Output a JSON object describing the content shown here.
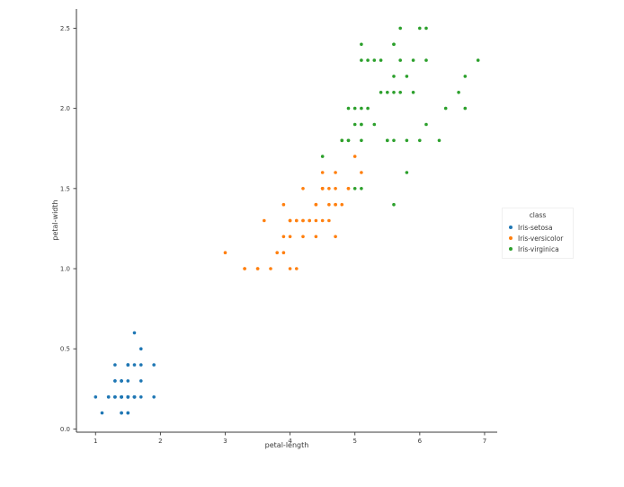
{
  "figure": {
    "background": "#ffffff",
    "text_color": "#3a3a3a",
    "spine_color": "#3a3a3a"
  },
  "chart_data": {
    "type": "scatter",
    "title": "",
    "xlabel": "petal-length",
    "ylabel": "petal-width",
    "xlim": [
      0.705,
      7.195
    ],
    "ylim": [
      -0.02,
      2.62
    ],
    "xticks": [
      "1",
      "2",
      "3",
      "4",
      "5",
      "6",
      "7"
    ],
    "yticks": [
      "0.0",
      "0.5",
      "1.0",
      "1.5",
      "2.0",
      "2.5"
    ],
    "grid": false,
    "legend": {
      "title": "class",
      "position": "right-outside",
      "entries": [
        "Iris-setosa",
        "Iris-versicolor",
        "Iris-virginica"
      ]
    },
    "series": [
      {
        "name": "Iris-setosa",
        "color": "#1f77b4",
        "points": [
          [
            1.4,
            0.2
          ],
          [
            1.4,
            0.2
          ],
          [
            1.3,
            0.2
          ],
          [
            1.5,
            0.2
          ],
          [
            1.4,
            0.2
          ],
          [
            1.7,
            0.4
          ],
          [
            1.4,
            0.3
          ],
          [
            1.5,
            0.2
          ],
          [
            1.4,
            0.2
          ],
          [
            1.5,
            0.1
          ],
          [
            1.5,
            0.2
          ],
          [
            1.6,
            0.2
          ],
          [
            1.4,
            0.1
          ],
          [
            1.1,
            0.1
          ],
          [
            1.2,
            0.2
          ],
          [
            1.5,
            0.4
          ],
          [
            1.3,
            0.4
          ],
          [
            1.4,
            0.3
          ],
          [
            1.7,
            0.3
          ],
          [
            1.5,
            0.3
          ],
          [
            1.7,
            0.2
          ],
          [
            1.5,
            0.4
          ],
          [
            1.0,
            0.2
          ],
          [
            1.7,
            0.5
          ],
          [
            1.9,
            0.2
          ],
          [
            1.6,
            0.2
          ],
          [
            1.6,
            0.4
          ],
          [
            1.5,
            0.2
          ],
          [
            1.4,
            0.2
          ],
          [
            1.6,
            0.2
          ],
          [
            1.6,
            0.2
          ],
          [
            1.5,
            0.4
          ],
          [
            1.5,
            0.1
          ],
          [
            1.4,
            0.2
          ],
          [
            1.5,
            0.2
          ],
          [
            1.2,
            0.2
          ],
          [
            1.3,
            0.2
          ],
          [
            1.4,
            0.1
          ],
          [
            1.3,
            0.2
          ],
          [
            1.5,
            0.2
          ],
          [
            1.3,
            0.3
          ],
          [
            1.3,
            0.3
          ],
          [
            1.3,
            0.2
          ],
          [
            1.6,
            0.6
          ],
          [
            1.9,
            0.4
          ],
          [
            1.4,
            0.3
          ],
          [
            1.6,
            0.2
          ],
          [
            1.4,
            0.2
          ],
          [
            1.5,
            0.2
          ],
          [
            1.4,
            0.2
          ]
        ]
      },
      {
        "name": "Iris-versicolor",
        "color": "#ff7f0e",
        "points": [
          [
            4.7,
            1.4
          ],
          [
            4.5,
            1.5
          ],
          [
            4.9,
            1.5
          ],
          [
            4.0,
            1.3
          ],
          [
            4.6,
            1.5
          ],
          [
            4.5,
            1.3
          ],
          [
            4.7,
            1.6
          ],
          [
            3.3,
            1.0
          ],
          [
            4.6,
            1.3
          ],
          [
            3.9,
            1.4
          ],
          [
            3.5,
            1.0
          ],
          [
            4.2,
            1.5
          ],
          [
            4.0,
            1.0
          ],
          [
            4.7,
            1.4
          ],
          [
            3.6,
            1.3
          ],
          [
            4.4,
            1.4
          ],
          [
            4.5,
            1.5
          ],
          [
            4.1,
            1.0
          ],
          [
            4.5,
            1.5
          ],
          [
            3.9,
            1.1
          ],
          [
            4.8,
            1.8
          ],
          [
            4.0,
            1.3
          ],
          [
            4.9,
            1.5
          ],
          [
            4.7,
            1.2
          ],
          [
            4.3,
            1.3
          ],
          [
            4.4,
            1.4
          ],
          [
            4.8,
            1.4
          ],
          [
            5.0,
            1.7
          ],
          [
            4.5,
            1.5
          ],
          [
            3.5,
            1.0
          ],
          [
            3.8,
            1.1
          ],
          [
            3.7,
            1.0
          ],
          [
            3.9,
            1.2
          ],
          [
            5.1,
            1.6
          ],
          [
            4.5,
            1.5
          ],
          [
            4.5,
            1.6
          ],
          [
            4.7,
            1.5
          ],
          [
            4.4,
            1.3
          ],
          [
            4.1,
            1.3
          ],
          [
            4.0,
            1.3
          ],
          [
            4.4,
            1.2
          ],
          [
            4.6,
            1.4
          ],
          [
            4.0,
            1.2
          ],
          [
            3.3,
            1.0
          ],
          [
            4.2,
            1.3
          ],
          [
            4.2,
            1.2
          ],
          [
            4.2,
            1.3
          ],
          [
            4.3,
            1.3
          ],
          [
            3.0,
            1.1
          ],
          [
            4.1,
            1.3
          ]
        ]
      },
      {
        "name": "Iris-virginica",
        "color": "#2ca02c",
        "points": [
          [
            6.0,
            2.5
          ],
          [
            5.1,
            1.9
          ],
          [
            5.9,
            2.1
          ],
          [
            5.6,
            1.8
          ],
          [
            5.8,
            2.2
          ],
          [
            6.6,
            2.1
          ],
          [
            4.5,
            1.7
          ],
          [
            6.3,
            1.8
          ],
          [
            5.8,
            1.8
          ],
          [
            6.1,
            2.5
          ],
          [
            5.1,
            2.0
          ],
          [
            5.3,
            1.9
          ],
          [
            5.5,
            2.1
          ],
          [
            5.0,
            2.0
          ],
          [
            5.1,
            2.4
          ],
          [
            5.3,
            2.3
          ],
          [
            5.5,
            1.8
          ],
          [
            6.7,
            2.2
          ],
          [
            6.9,
            2.3
          ],
          [
            5.0,
            1.5
          ],
          [
            5.7,
            2.3
          ],
          [
            4.9,
            2.0
          ],
          [
            6.7,
            2.0
          ],
          [
            4.9,
            1.8
          ],
          [
            5.7,
            2.1
          ],
          [
            6.0,
            1.8
          ],
          [
            4.8,
            1.8
          ],
          [
            4.9,
            1.8
          ],
          [
            5.6,
            2.1
          ],
          [
            5.8,
            1.6
          ],
          [
            6.1,
            1.9
          ],
          [
            6.4,
            2.0
          ],
          [
            5.6,
            2.2
          ],
          [
            5.1,
            1.5
          ],
          [
            5.6,
            1.4
          ],
          [
            6.1,
            2.3
          ],
          [
            5.6,
            2.4
          ],
          [
            5.5,
            1.8
          ],
          [
            4.8,
            1.8
          ],
          [
            5.4,
            2.1
          ],
          [
            5.6,
            2.4
          ],
          [
            5.1,
            2.3
          ],
          [
            5.1,
            1.9
          ],
          [
            5.9,
            2.3
          ],
          [
            5.7,
            2.5
          ],
          [
            5.2,
            2.3
          ],
          [
            5.0,
            1.9
          ],
          [
            5.2,
            2.0
          ],
          [
            5.4,
            2.3
          ],
          [
            5.1,
            1.8
          ]
        ]
      }
    ]
  }
}
